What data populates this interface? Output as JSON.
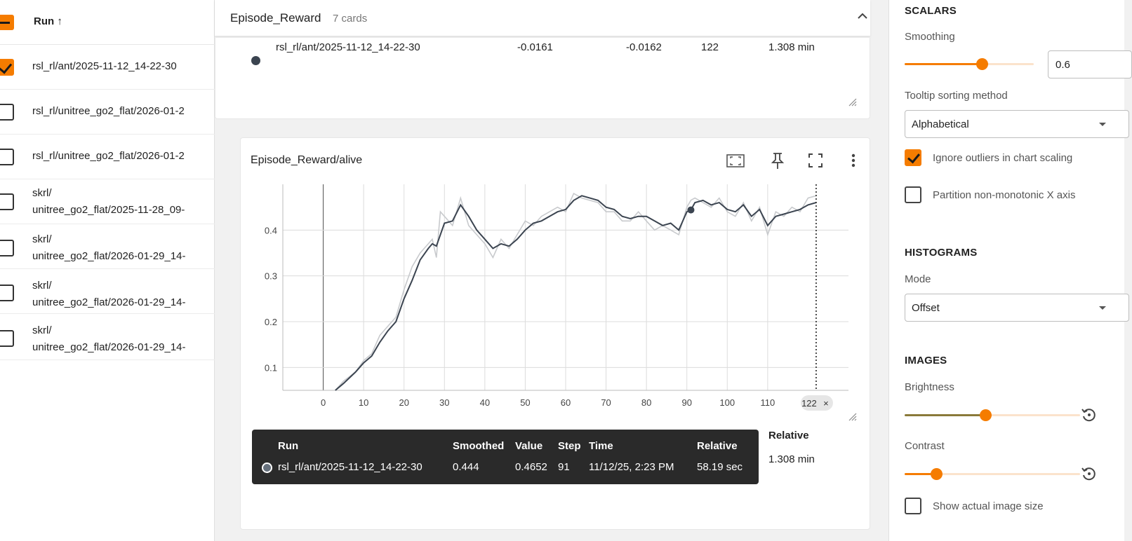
{
  "runs": {
    "header_label": "Run ↑",
    "items": [
      {
        "label": "rsl_rl/ant/2025-11-12_14-22-30",
        "checked": true
      },
      {
        "label": "rsl_rl/unitree_go2_flat/2026-01-2",
        "checked": false
      },
      {
        "label": "rsl_rl/unitree_go2_flat/2026-01-2",
        "checked": false
      },
      {
        "label_line1": "skrl/",
        "label_line2": "unitree_go2_flat/2025-11-28_09-",
        "checked": false
      },
      {
        "label_line1": "skrl/",
        "label_line2": "unitree_go2_flat/2026-01-29_14-",
        "checked": false
      },
      {
        "label_line1": "skrl/",
        "label_line2": "unitree_go2_flat/2026-01-29_14-",
        "checked": false
      },
      {
        "label_line1": "skrl/",
        "label_line2": "unitree_go2_flat/2026-01-29_14-",
        "checked": false
      }
    ]
  },
  "group": {
    "title": "Episode_Reward",
    "count": "7 cards"
  },
  "prev_card": {
    "run": "rsl_rl/ant/2025-11-12_14-22-30",
    "smoothed": "-0.0161",
    "value": "-0.0162",
    "step": "122",
    "relative": "1.308 min"
  },
  "card": {
    "title": "Episode_Reward/alive",
    "tooltip": {
      "headers": {
        "run": "Run",
        "smoothed": "Smoothed",
        "value": "Value",
        "step": "Step",
        "time": "Time",
        "relative": "Relative"
      },
      "row": {
        "run": "rsl_rl/ant/2025-11-12_14-22-30",
        "smoothed": "0.444",
        "value": "0.4652",
        "step": "91",
        "time": "11/12/25, 2:23 PM",
        "relative": "58.19 sec"
      }
    },
    "outside_relative_header": "Relative",
    "outside_relative_value": "1.308 min"
  },
  "chart_data": {
    "type": "line",
    "title": "Episode_Reward/alive",
    "xlabel": "",
    "ylabel": "",
    "xlim": [
      -10,
      130
    ],
    "ylim": [
      0.05,
      0.5
    ],
    "x_ticks": [
      "0",
      "10",
      "20",
      "30",
      "40",
      "50",
      "60",
      "70",
      "80",
      "90",
      "100",
      "110"
    ],
    "y_ticks": [
      "0.1",
      "0.2",
      "0.3",
      "0.4"
    ],
    "cursor_step_label": "122",
    "hover_point": {
      "x": 91,
      "y": 0.444
    },
    "grid": true,
    "series": [
      {
        "name": "rsl_rl/ant/2025-11-12_14-22-30",
        "color": "#3b4450",
        "raw_color": "#c8cacd",
        "x": [
          3,
          5,
          8,
          10,
          12,
          14,
          16,
          18,
          20,
          22,
          24,
          26,
          27,
          28,
          29,
          30,
          32,
          34,
          36,
          38,
          40,
          42,
          44,
          46,
          48,
          50,
          52,
          54,
          56,
          58,
          60,
          62,
          64,
          66,
          68,
          70,
          72,
          74,
          76,
          78,
          80,
          82,
          84,
          86,
          88,
          90,
          91,
          92,
          94,
          96,
          98,
          100,
          102,
          104,
          106,
          108,
          110,
          112,
          114,
          116,
          118,
          120,
          122
        ],
        "smoothed": [
          0.05,
          0.065,
          0.09,
          0.11,
          0.125,
          0.155,
          0.18,
          0.2,
          0.25,
          0.29,
          0.335,
          0.36,
          0.37,
          0.365,
          0.39,
          0.415,
          0.42,
          0.455,
          0.43,
          0.4,
          0.38,
          0.36,
          0.37,
          0.365,
          0.38,
          0.4,
          0.415,
          0.42,
          0.43,
          0.44,
          0.445,
          0.465,
          0.475,
          0.47,
          0.465,
          0.45,
          0.445,
          0.43,
          0.425,
          0.43,
          0.43,
          0.42,
          0.41,
          0.415,
          0.4,
          0.44,
          0.444,
          0.46,
          0.465,
          0.455,
          0.46,
          0.445,
          0.44,
          0.455,
          0.43,
          0.445,
          0.41,
          0.43,
          0.435,
          0.44,
          0.445,
          0.455,
          0.46
        ],
        "raw": [
          0.05,
          0.07,
          0.09,
          0.115,
          0.13,
          0.17,
          0.19,
          0.21,
          0.27,
          0.32,
          0.35,
          0.37,
          0.38,
          0.34,
          0.44,
          0.43,
          0.41,
          0.47,
          0.41,
          0.39,
          0.37,
          0.34,
          0.38,
          0.36,
          0.39,
          0.42,
          0.41,
          0.43,
          0.44,
          0.45,
          0.44,
          0.48,
          0.47,
          0.465,
          0.46,
          0.44,
          0.44,
          0.42,
          0.42,
          0.44,
          0.42,
          0.4,
          0.41,
          0.4,
          0.39,
          0.45,
          0.4652,
          0.47,
          0.46,
          0.45,
          0.47,
          0.44,
          0.43,
          0.46,
          0.42,
          0.45,
          0.39,
          0.44,
          0.43,
          0.45,
          0.44,
          0.47,
          0.475
        ]
      }
    ]
  },
  "settings": {
    "scalars": {
      "title": "SCALARS",
      "smoothing_label": "Smoothing",
      "smoothing_value": "0.6",
      "smoothing_fraction": 0.6,
      "tooltip_sort_label": "Tooltip sorting method",
      "tooltip_sort_value": "Alphabetical",
      "ignore_outliers_label": "Ignore outliers in chart scaling",
      "ignore_outliers_checked": true,
      "partition_label": "Partition non-monotonic X axis",
      "partition_checked": false
    },
    "histograms": {
      "title": "HISTOGRAMS",
      "mode_label": "Mode",
      "mode_value": "Offset"
    },
    "images": {
      "title": "IMAGES",
      "brightness_label": "Brightness",
      "brightness_fraction": 0.46,
      "contrast_label": "Contrast",
      "contrast_fraction": 0.18,
      "actual_size_label": "Show actual image size",
      "actual_size_checked": false
    }
  },
  "colors": {
    "accent": "#f57c00",
    "series": "#3b4450",
    "tooltip_bg": "#2a2a2a"
  }
}
